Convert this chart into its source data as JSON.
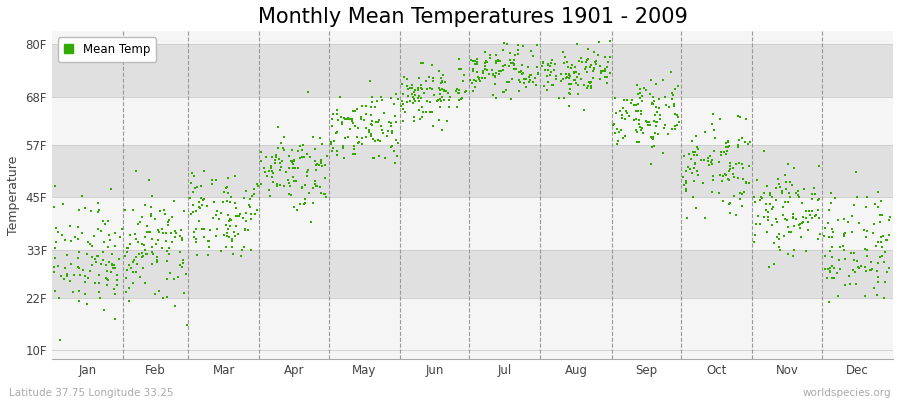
{
  "title": "Monthly Mean Temperatures 1901 - 2009",
  "ylabel": "Temperature",
  "subtitle_left": "Latitude 37.75 Longitude 33.25",
  "subtitle_right": "worldspecies.org",
  "months": [
    "Jan",
    "Feb",
    "Mar",
    "Apr",
    "May",
    "Jun",
    "Jul",
    "Aug",
    "Sep",
    "Oct",
    "Nov",
    "Dec"
  ],
  "legend_label": "Mean Temp",
  "dot_color": "#33aa00",
  "background_color": "#ebebeb",
  "plot_bg_color": "#ebebeb",
  "yticks": [
    10,
    22,
    33,
    45,
    57,
    68,
    80
  ],
  "ylim": [
    8,
    83
  ],
  "xlim": [
    0,
    365
  ],
  "title_fontsize": 15,
  "label_fontsize": 9,
  "tick_fontsize": 8.5,
  "years": 109,
  "monthly_means_C": [
    -0.5,
    0.5,
    5.0,
    11.0,
    16.0,
    20.5,
    23.5,
    23.0,
    17.5,
    11.5,
    5.5,
    1.0
  ],
  "monthly_stds_C": [
    3.5,
    3.5,
    3.0,
    2.5,
    2.5,
    2.0,
    1.5,
    1.8,
    2.5,
    3.0,
    3.0,
    3.5
  ],
  "month_lengths": [
    31,
    28,
    31,
    30,
    31,
    30,
    31,
    31,
    30,
    31,
    30,
    31
  ],
  "band_colors": [
    "#f5f5f5",
    "#e0e0e0"
  ]
}
